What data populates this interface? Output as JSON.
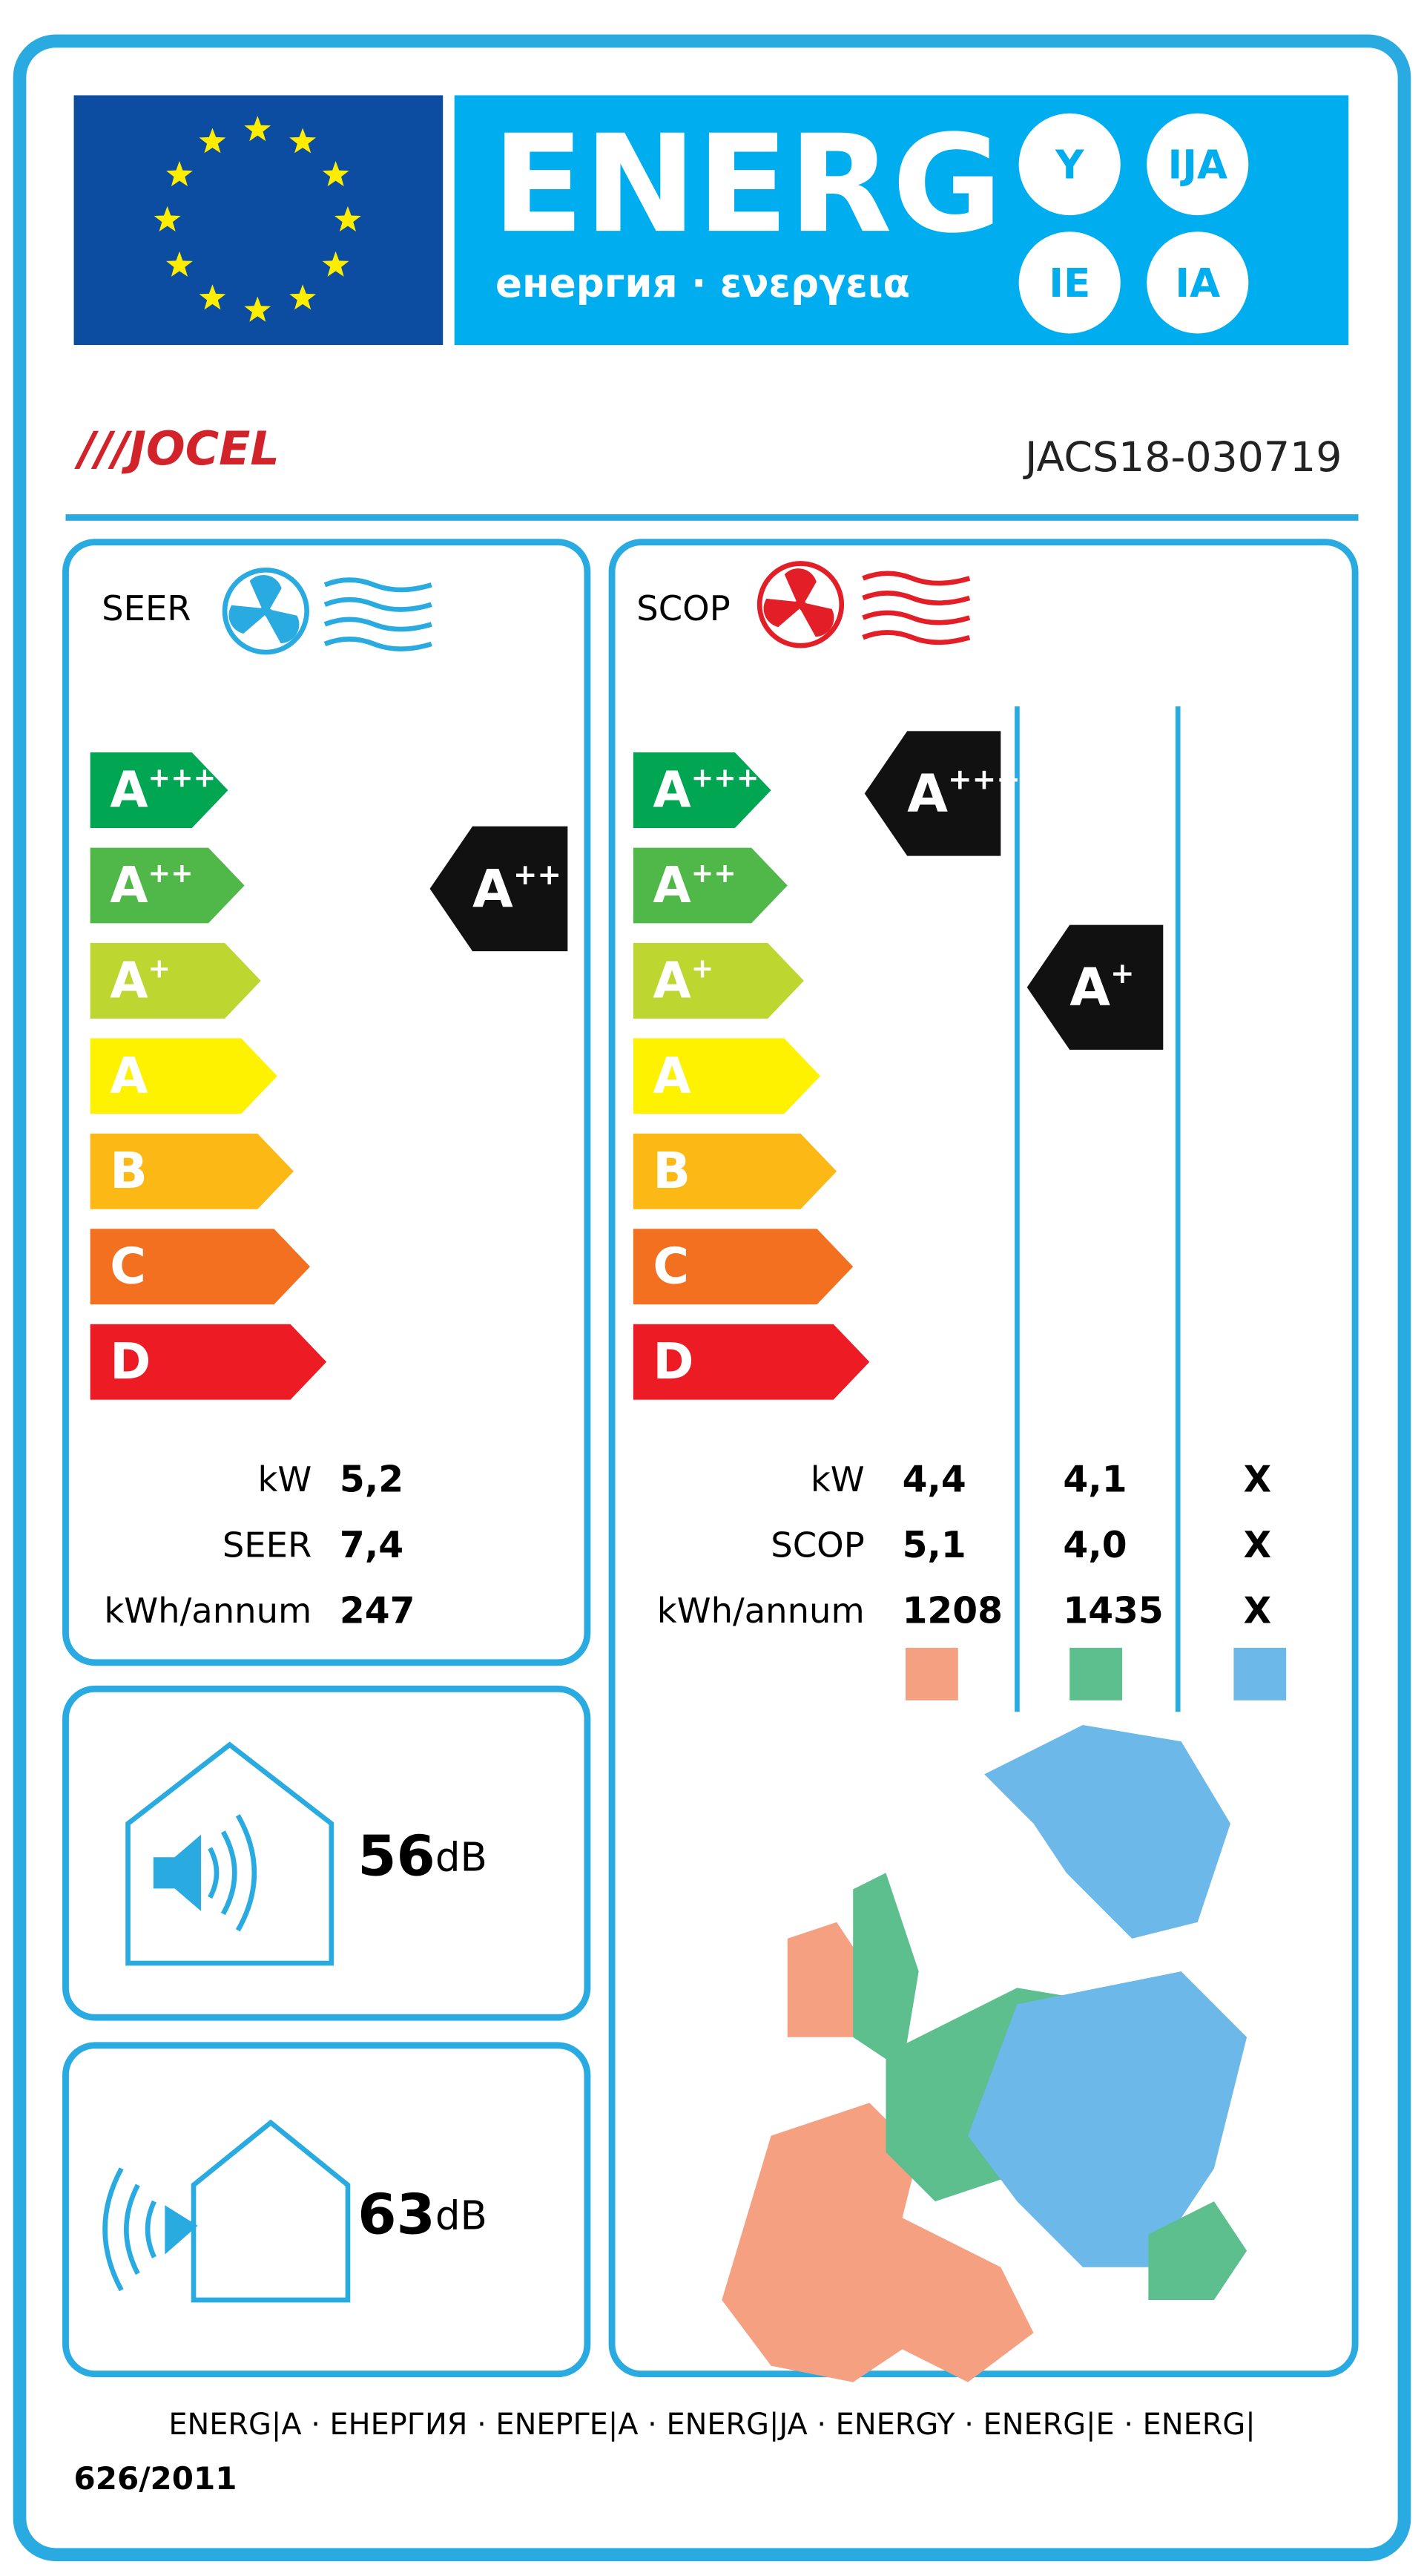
{
  "header": {
    "title": "ENERG",
    "subtitle": "енергия · ενεργεια",
    "suffixes": [
      "Y",
      "IJA",
      "IE",
      "IA"
    ]
  },
  "brand": "///JOCEL",
  "model": "JACS18-030719",
  "classes": [
    {
      "letter": "A",
      "sup": "+++"
    },
    {
      "letter": "A",
      "sup": "++"
    },
    {
      "letter": "A",
      "sup": "+"
    },
    {
      "letter": "A",
      "sup": ""
    },
    {
      "letter": "B",
      "sup": ""
    },
    {
      "letter": "C",
      "sup": ""
    },
    {
      "letter": "D",
      "sup": ""
    }
  ],
  "cooling": {
    "label": "SEER",
    "rating": {
      "letter": "A",
      "sup": "++"
    },
    "rows": [
      {
        "label": "kW",
        "values": [
          "5,2"
        ]
      },
      {
        "label": "SEER",
        "values": [
          "7,4"
        ]
      },
      {
        "label": "kWh/annum",
        "values": [
          "247"
        ]
      }
    ]
  },
  "heating": {
    "label": "SCOP",
    "ratings": [
      {
        "letter": "A",
        "sup": "+++"
      },
      {
        "letter": "A",
        "sup": "+"
      }
    ],
    "rows": [
      {
        "label": "kW",
        "values": [
          "4,4",
          "4,1",
          "X"
        ]
      },
      {
        "label": "SCOP",
        "values": [
          "5,1",
          "4,0",
          "X"
        ]
      },
      {
        "label": "kWh/annum",
        "values": [
          "1208",
          "1435",
          "X"
        ]
      }
    ]
  },
  "noise": [
    {
      "value": "56",
      "unit": "dB"
    },
    {
      "value": "63",
      "unit": "dB"
    }
  ],
  "footer": {
    "languages": "ENERG|A · ЕНЕРГИЯ · ΕΝΕΡΓΕ|Α · ENERG|JA · ENERGY · ENERG|E · ENERG|",
    "regulation": "626/2011"
  }
}
